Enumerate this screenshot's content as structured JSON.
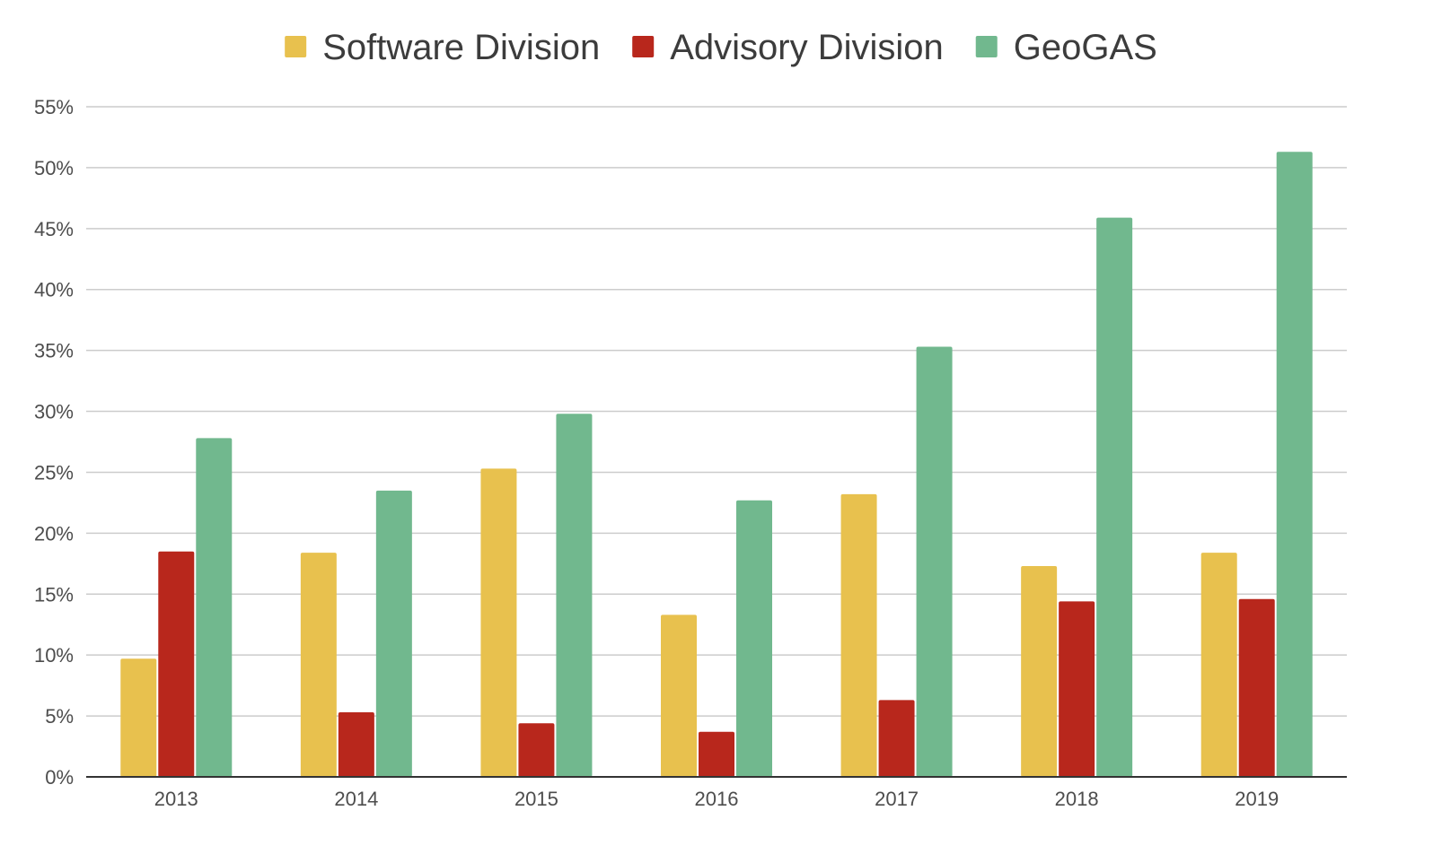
{
  "chart_data": {
    "type": "bar",
    "title": "",
    "xlabel": "",
    "ylabel": "",
    "categories": [
      "2013",
      "2014",
      "2015",
      "2016",
      "2017",
      "2018",
      "2019"
    ],
    "series": [
      {
        "name": "Software Division",
        "color": "#E8C14E",
        "values": [
          9.7,
          18.4,
          25.3,
          13.3,
          23.2,
          17.3,
          18.4
        ]
      },
      {
        "name": "Advisory Division",
        "color": "#B8271C",
        "values": [
          18.5,
          5.3,
          4.4,
          3.7,
          6.3,
          14.4,
          14.6
        ]
      },
      {
        "name": "GeoGAS",
        "color": "#71B88E",
        "values": [
          27.8,
          23.5,
          29.8,
          22.7,
          35.3,
          45.9,
          51.3
        ]
      }
    ],
    "ylim": [
      0,
      55
    ],
    "y_ticks": [
      "0%",
      "5%",
      "10%",
      "15%",
      "20%",
      "25%",
      "30%",
      "35%",
      "40%",
      "45%",
      "50%",
      "55%"
    ],
    "y_tick_values": [
      0,
      5,
      10,
      15,
      20,
      25,
      30,
      35,
      40,
      45,
      50,
      55
    ],
    "grid": true,
    "legend_position": "top-center"
  }
}
